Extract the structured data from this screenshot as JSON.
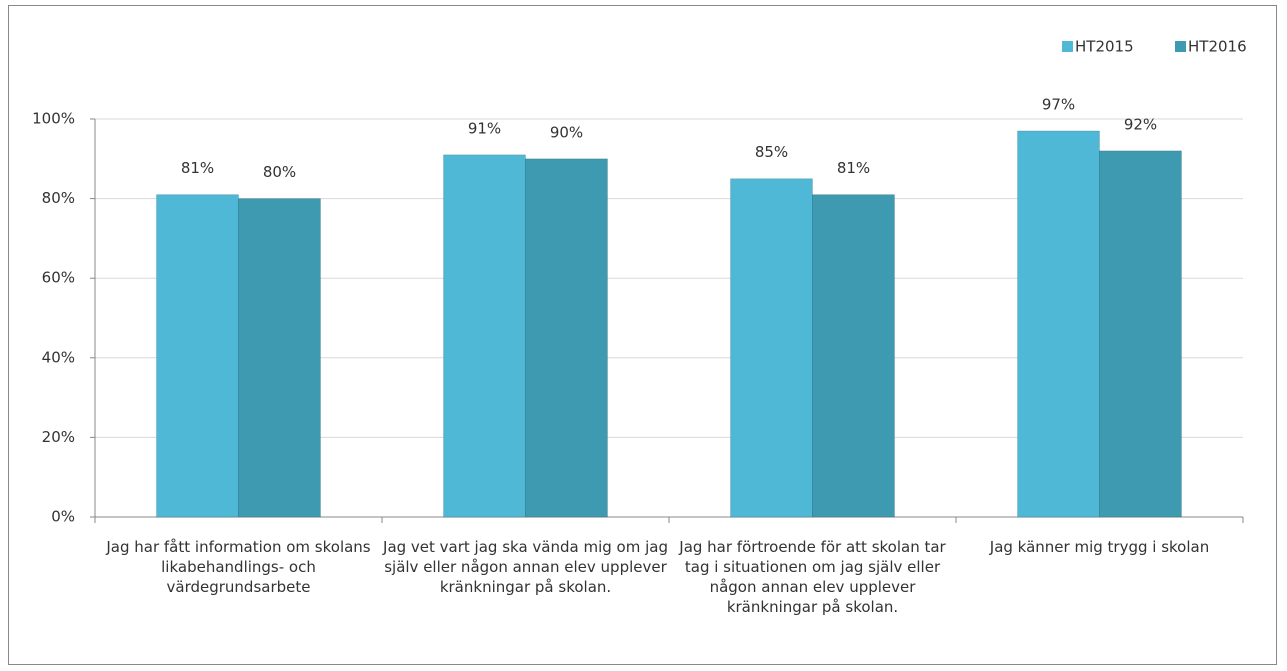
{
  "chart_data": {
    "type": "bar",
    "categories": [
      "Jag har fått information om skolans likabehandlings- och värdegrundsarbete",
      "Jag vet vart jag ska vända mig om jag själv eller någon annan elev upplever kränkningar på skolan.",
      "Jag har förtroende för att skolan tar tag i situationen om jag själv eller någon annan elev upplever kränkningar på skolan.",
      "Jag känner mig trygg i skolan"
    ],
    "series": [
      {
        "name": "HT2015",
        "color": "#4fb8d6",
        "values": [
          81,
          91,
          85,
          97
        ],
        "value_labels": [
          "81%",
          "91%",
          "85%",
          "97%"
        ]
      },
      {
        "name": "HT2016",
        "color": "#3e9ab0",
        "values": [
          80,
          90,
          81,
          92
        ],
        "value_labels": [
          "80%",
          "90%",
          "81%",
          "92%"
        ]
      }
    ],
    "ylim": [
      0,
      100
    ],
    "yticks": [
      {
        "value": 0,
        "label": "0%"
      },
      {
        "value": 20,
        "label": "20%"
      },
      {
        "value": 40,
        "label": "40%"
      },
      {
        "value": 60,
        "label": "60%"
      },
      {
        "value": 80,
        "label": "80%"
      },
      {
        "value": 100,
        "label": "100%"
      }
    ],
    "grid": true,
    "legend": "top-right"
  }
}
